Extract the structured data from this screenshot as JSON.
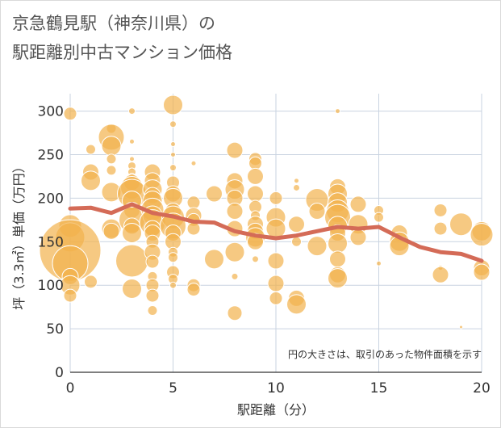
{
  "title_line1": "京急鶴見駅（神奈川県）の",
  "title_line2": "駅距離別中古マンション価格",
  "chart_data": {
    "type": "scatter",
    "xlabel": "駅距離（分）",
    "ylabel": "坪（3.3㎡）単価（万円）",
    "xlim": [
      0,
      20
    ],
    "ylim": [
      0,
      320
    ],
    "xticks": [
      0,
      5,
      10,
      15,
      20
    ],
    "yticks": [
      0,
      50,
      100,
      150,
      200,
      250,
      300
    ],
    "grid": true,
    "note": "円の大きさは、取引のあった物件面積を示す",
    "colors": {
      "bubble": "#f2b24d",
      "line": "#d46b57"
    },
    "series": [
      {
        "kind": "bubble",
        "points": [
          {
            "x": 0,
            "y": 297,
            "s": 8
          },
          {
            "x": 0,
            "y": 168,
            "s": 14
          },
          {
            "x": 0,
            "y": 155,
            "s": 18
          },
          {
            "x": 0,
            "y": 140,
            "s": 38
          },
          {
            "x": 0,
            "y": 125,
            "s": 22
          },
          {
            "x": 0,
            "y": 110,
            "s": 10
          },
          {
            "x": 0,
            "y": 100,
            "s": 12
          },
          {
            "x": 0,
            "y": 88,
            "s": 8
          },
          {
            "x": 1,
            "y": 256,
            "s": 6
          },
          {
            "x": 1,
            "y": 230,
            "s": 10
          },
          {
            "x": 1,
            "y": 220,
            "s": 12
          },
          {
            "x": 1,
            "y": 104,
            "s": 8
          },
          {
            "x": 2,
            "y": 280,
            "s": 6
          },
          {
            "x": 2,
            "y": 270,
            "s": 16
          },
          {
            "x": 2,
            "y": 260,
            "s": 12
          },
          {
            "x": 2,
            "y": 245,
            "s": 6
          },
          {
            "x": 2,
            "y": 232,
            "s": 6
          },
          {
            "x": 2,
            "y": 207,
            "s": 12
          },
          {
            "x": 2,
            "y": 165,
            "s": 12
          },
          {
            "x": 2,
            "y": 162,
            "s": 10
          },
          {
            "x": 3,
            "y": 300,
            "s": 4
          },
          {
            "x": 3,
            "y": 265,
            "s": 3
          },
          {
            "x": 3,
            "y": 245,
            "s": 3
          },
          {
            "x": 3,
            "y": 237,
            "s": 5
          },
          {
            "x": 3,
            "y": 230,
            "s": 5
          },
          {
            "x": 3,
            "y": 225,
            "s": 4
          },
          {
            "x": 3,
            "y": 218,
            "s": 10
          },
          {
            "x": 3,
            "y": 212,
            "s": 14
          },
          {
            "x": 3,
            "y": 205,
            "s": 18
          },
          {
            "x": 3,
            "y": 197,
            "s": 12
          },
          {
            "x": 3,
            "y": 186,
            "s": 10
          },
          {
            "x": 3,
            "y": 175,
            "s": 16
          },
          {
            "x": 3,
            "y": 168,
            "s": 10
          },
          {
            "x": 3,
            "y": 160,
            "s": 12
          },
          {
            "x": 3,
            "y": 128,
            "s": 20
          },
          {
            "x": 3,
            "y": 96,
            "s": 12
          },
          {
            "x": 4,
            "y": 230,
            "s": 10
          },
          {
            "x": 4,
            "y": 220,
            "s": 10
          },
          {
            "x": 4,
            "y": 210,
            "s": 12
          },
          {
            "x": 4,
            "y": 203,
            "s": 10
          },
          {
            "x": 4,
            "y": 197,
            "s": 12
          },
          {
            "x": 4,
            "y": 187,
            "s": 14
          },
          {
            "x": 4,
            "y": 180,
            "s": 12
          },
          {
            "x": 4,
            "y": 172,
            "s": 16
          },
          {
            "x": 4,
            "y": 165,
            "s": 10
          },
          {
            "x": 4,
            "y": 160,
            "s": 10
          },
          {
            "x": 4,
            "y": 150,
            "s": 8
          },
          {
            "x": 4,
            "y": 138,
            "s": 10
          },
          {
            "x": 4,
            "y": 127,
            "s": 8
          },
          {
            "x": 4,
            "y": 110,
            "s": 6
          },
          {
            "x": 4,
            "y": 100,
            "s": 8
          },
          {
            "x": 4,
            "y": 88,
            "s": 8
          },
          {
            "x": 4,
            "y": 71,
            "s": 6
          },
          {
            "x": 5,
            "y": 307,
            "s": 12
          },
          {
            "x": 5,
            "y": 285,
            "s": 4
          },
          {
            "x": 5,
            "y": 262,
            "s": 3
          },
          {
            "x": 5,
            "y": 250,
            "s": 3
          },
          {
            "x": 5,
            "y": 235,
            "s": 4
          },
          {
            "x": 5,
            "y": 218,
            "s": 8
          },
          {
            "x": 5,
            "y": 205,
            "s": 10
          },
          {
            "x": 5,
            "y": 200,
            "s": 12
          },
          {
            "x": 5,
            "y": 185,
            "s": 10
          },
          {
            "x": 5,
            "y": 178,
            "s": 14
          },
          {
            "x": 5,
            "y": 168,
            "s": 16
          },
          {
            "x": 5,
            "y": 160,
            "s": 10
          },
          {
            "x": 5,
            "y": 150,
            "s": 10
          },
          {
            "x": 5,
            "y": 138,
            "s": 6
          },
          {
            "x": 5,
            "y": 132,
            "s": 6
          },
          {
            "x": 5,
            "y": 115,
            "s": 8
          },
          {
            "x": 5,
            "y": 107,
            "s": 6
          },
          {
            "x": 5,
            "y": 100,
            "s": 4
          },
          {
            "x": 6,
            "y": 240,
            "s": 3
          },
          {
            "x": 6,
            "y": 195,
            "s": 8
          },
          {
            "x": 6,
            "y": 180,
            "s": 10
          },
          {
            "x": 6,
            "y": 175,
            "s": 8
          },
          {
            "x": 6,
            "y": 165,
            "s": 8
          },
          {
            "x": 6,
            "y": 100,
            "s": 8
          },
          {
            "x": 6,
            "y": 95,
            "s": 8
          },
          {
            "x": 7,
            "y": 205,
            "s": 10
          },
          {
            "x": 7,
            "y": 130,
            "s": 12
          },
          {
            "x": 8,
            "y": 255,
            "s": 10
          },
          {
            "x": 8,
            "y": 220,
            "s": 10
          },
          {
            "x": 8,
            "y": 210,
            "s": 12
          },
          {
            "x": 8,
            "y": 200,
            "s": 10
          },
          {
            "x": 8,
            "y": 185,
            "s": 10
          },
          {
            "x": 8,
            "y": 165,
            "s": 10
          },
          {
            "x": 8,
            "y": 138,
            "s": 12
          },
          {
            "x": 8,
            "y": 110,
            "s": 4
          },
          {
            "x": 8,
            "y": 68,
            "s": 9
          },
          {
            "x": 9,
            "y": 245,
            "s": 8
          },
          {
            "x": 9,
            "y": 240,
            "s": 8
          },
          {
            "x": 9,
            "y": 225,
            "s": 10
          },
          {
            "x": 9,
            "y": 205,
            "s": 10
          },
          {
            "x": 9,
            "y": 190,
            "s": 8
          },
          {
            "x": 9,
            "y": 180,
            "s": 6
          },
          {
            "x": 9,
            "y": 170,
            "s": 10
          },
          {
            "x": 9,
            "y": 162,
            "s": 10
          },
          {
            "x": 9,
            "y": 155,
            "s": 12
          },
          {
            "x": 9,
            "y": 150,
            "s": 10
          },
          {
            "x": 9,
            "y": 130,
            "s": 4
          },
          {
            "x": 10,
            "y": 200,
            "s": 8
          },
          {
            "x": 10,
            "y": 178,
            "s": 12
          },
          {
            "x": 10,
            "y": 165,
            "s": 12
          },
          {
            "x": 10,
            "y": 128,
            "s": 10
          },
          {
            "x": 10,
            "y": 102,
            "s": 10
          },
          {
            "x": 10,
            "y": 85,
            "s": 8
          },
          {
            "x": 11,
            "y": 220,
            "s": 3
          },
          {
            "x": 11,
            "y": 212,
            "s": 4
          },
          {
            "x": 11,
            "y": 170,
            "s": 10
          },
          {
            "x": 11,
            "y": 150,
            "s": 6
          },
          {
            "x": 11,
            "y": 85,
            "s": 10
          },
          {
            "x": 11,
            "y": 78,
            "s": 12
          },
          {
            "x": 12,
            "y": 198,
            "s": 14
          },
          {
            "x": 12,
            "y": 185,
            "s": 10
          },
          {
            "x": 12,
            "y": 145,
            "s": 12
          },
          {
            "x": 13,
            "y": 300,
            "s": 3
          },
          {
            "x": 13,
            "y": 213,
            "s": 10
          },
          {
            "x": 13,
            "y": 205,
            "s": 12
          },
          {
            "x": 13,
            "y": 195,
            "s": 12
          },
          {
            "x": 13,
            "y": 185,
            "s": 14
          },
          {
            "x": 13,
            "y": 178,
            "s": 16
          },
          {
            "x": 13,
            "y": 168,
            "s": 12
          },
          {
            "x": 13,
            "y": 160,
            "s": 10
          },
          {
            "x": 13,
            "y": 148,
            "s": 12
          },
          {
            "x": 13,
            "y": 130,
            "s": 10
          },
          {
            "x": 13,
            "y": 112,
            "s": 10
          },
          {
            "x": 13,
            "y": 108,
            "s": 12
          },
          {
            "x": 14,
            "y": 193,
            "s": 10
          },
          {
            "x": 14,
            "y": 170,
            "s": 12
          },
          {
            "x": 14,
            "y": 155,
            "s": 10
          },
          {
            "x": 15,
            "y": 186,
            "s": 6
          },
          {
            "x": 15,
            "y": 178,
            "s": 6
          },
          {
            "x": 15,
            "y": 125,
            "s": 3
          },
          {
            "x": 16,
            "y": 160,
            "s": 10
          },
          {
            "x": 16,
            "y": 150,
            "s": 12
          },
          {
            "x": 16,
            "y": 145,
            "s": 12
          },
          {
            "x": 18,
            "y": 186,
            "s": 8
          },
          {
            "x": 18,
            "y": 165,
            "s": 8
          },
          {
            "x": 18,
            "y": 120,
            "s": 3
          },
          {
            "x": 18,
            "y": 112,
            "s": 10
          },
          {
            "x": 19,
            "y": 170,
            "s": 14
          },
          {
            "x": 19,
            "y": 52,
            "s": 2
          },
          {
            "x": 20,
            "y": 162,
            "s": 12
          },
          {
            "x": 20,
            "y": 158,
            "s": 14
          },
          {
            "x": 20,
            "y": 120,
            "s": 10
          },
          {
            "x": 20,
            "y": 115,
            "s": 10
          }
        ]
      },
      {
        "kind": "line",
        "points": [
          {
            "x": 0,
            "y": 188
          },
          {
            "x": 1,
            "y": 189
          },
          {
            "x": 2,
            "y": 183
          },
          {
            "x": 3,
            "y": 193
          },
          {
            "x": 4,
            "y": 183
          },
          {
            "x": 5,
            "y": 179
          },
          {
            "x": 6,
            "y": 173
          },
          {
            "x": 7,
            "y": 172
          },
          {
            "x": 8,
            "y": 162
          },
          {
            "x": 9,
            "y": 157
          },
          {
            "x": 10,
            "y": 154
          },
          {
            "x": 11,
            "y": 157
          },
          {
            "x": 12,
            "y": 162
          },
          {
            "x": 13,
            "y": 167
          },
          {
            "x": 14,
            "y": 165
          },
          {
            "x": 15,
            "y": 167
          },
          {
            "x": 16,
            "y": 155
          },
          {
            "x": 17,
            "y": 144
          },
          {
            "x": 18,
            "y": 138
          },
          {
            "x": 19,
            "y": 136
          },
          {
            "x": 20,
            "y": 128
          }
        ]
      }
    ]
  }
}
